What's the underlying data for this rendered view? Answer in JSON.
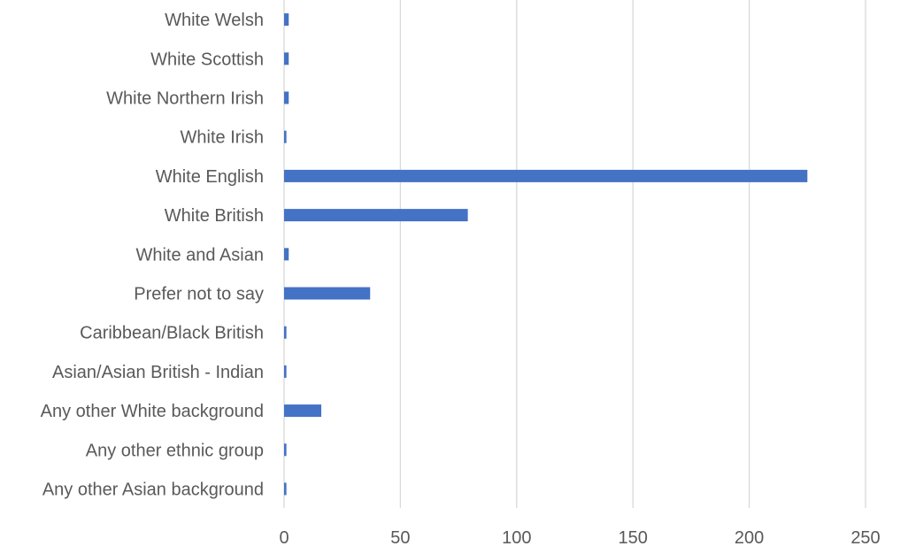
{
  "chart_data": {
    "type": "bar",
    "orientation": "horizontal",
    "title": "",
    "xlabel": "",
    "ylabel": "",
    "categories": [
      "Any other Asian background",
      "Any other ethnic group",
      "Any other White background",
      "Asian/Asian British - Indian",
      "Caribbean/Black British",
      "Prefer not to say",
      "White and Asian",
      "White British",
      "White English",
      "White Irish",
      "White Northern Irish",
      "White Scottish",
      "White Welsh"
    ],
    "values": [
      1,
      1,
      16,
      1,
      1,
      37,
      2,
      79,
      225,
      1,
      2,
      2,
      2
    ],
    "xlim": [
      0,
      250
    ],
    "xticks": [
      0,
      50,
      100,
      150,
      200,
      250
    ],
    "grid": true,
    "legend": "none",
    "bar_color": "#4472c4"
  }
}
